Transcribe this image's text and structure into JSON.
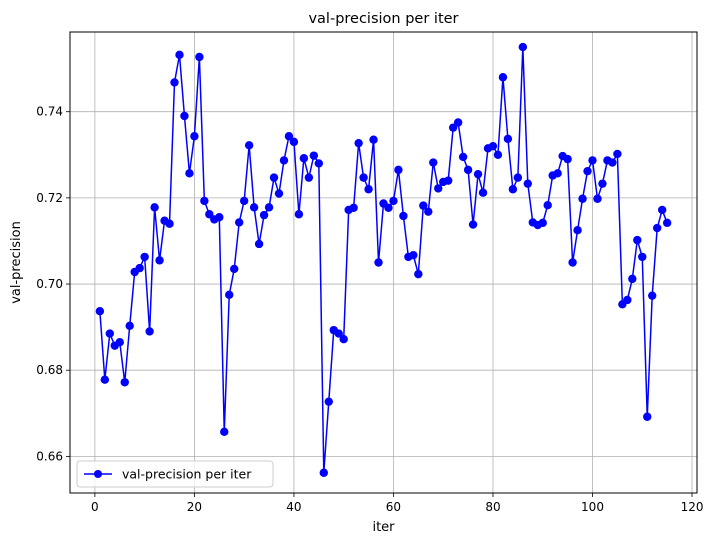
{
  "chart_data": {
    "type": "line",
    "title": "val-precision per iter",
    "xlabel": "iter",
    "ylabel": "val-precision",
    "xlim": [
      -5,
      121
    ],
    "ylim": [
      0.6515,
      0.7585
    ],
    "xticks": [
      0,
      20,
      40,
      60,
      80,
      100,
      120
    ],
    "yticks": [
      0.66,
      0.68,
      0.7,
      0.72,
      0.74
    ],
    "ytick_labels": [
      "0.66",
      "0.68",
      "0.70",
      "0.72",
      "0.74"
    ],
    "grid": true,
    "legend_position": "lower-left",
    "series": [
      {
        "name": "val-precision per iter",
        "color": "#0000ff",
        "marker": "circle",
        "x": [
          1,
          2,
          3,
          4,
          5,
          6,
          7,
          8,
          9,
          10,
          11,
          12,
          13,
          14,
          15,
          16,
          17,
          18,
          19,
          20,
          21,
          22,
          23,
          24,
          25,
          26,
          27,
          28,
          29,
          30,
          31,
          32,
          33,
          34,
          35,
          36,
          37,
          38,
          39,
          40,
          41,
          42,
          43,
          44,
          45,
          46,
          47,
          48,
          49,
          50,
          51,
          52,
          53,
          54,
          55,
          56,
          57,
          58,
          59,
          60,
          61,
          62,
          63,
          64,
          65,
          66,
          67,
          68,
          69,
          70,
          71,
          72,
          73,
          74,
          75,
          76,
          77,
          78,
          79,
          80,
          81,
          82,
          83,
          84,
          85,
          86,
          87,
          88,
          89,
          90,
          91,
          92,
          93,
          94,
          95,
          96,
          97,
          98,
          99,
          100,
          101,
          102,
          103,
          104,
          105,
          106,
          107,
          108,
          109,
          110,
          111,
          112,
          113,
          114,
          115
        ],
        "y": [
          0.6937,
          0.6778,
          0.6885,
          0.6857,
          0.6865,
          0.6772,
          0.6903,
          0.7028,
          0.7037,
          0.7063,
          0.689,
          0.7178,
          0.7055,
          0.7147,
          0.714,
          0.7468,
          0.7532,
          0.739,
          0.7257,
          0.7343,
          0.7527,
          0.7193,
          0.7162,
          0.715,
          0.7155,
          0.6657,
          0.6975,
          0.7035,
          0.7143,
          0.7193,
          0.7322,
          0.7178,
          0.7093,
          0.716,
          0.7178,
          0.7247,
          0.721,
          0.7287,
          0.7343,
          0.733,
          0.7162,
          0.7292,
          0.7247,
          0.7298,
          0.728,
          0.6562,
          0.6727,
          0.6893,
          0.6885,
          0.6872,
          0.7172,
          0.7177,
          0.7327,
          0.7247,
          0.722,
          0.7335,
          0.705,
          0.7187,
          0.7177,
          0.7193,
          0.7265,
          0.7158,
          0.7063,
          0.7067,
          0.7023,
          0.7182,
          0.7168,
          0.7282,
          0.7222,
          0.7237,
          0.724,
          0.7363,
          0.7375,
          0.7295,
          0.7265,
          0.7138,
          0.7255,
          0.7212,
          0.7315,
          0.732,
          0.73,
          0.748,
          0.7337,
          0.722,
          0.7247,
          0.755,
          0.7233,
          0.7143,
          0.7137,
          0.7142,
          0.7183,
          0.7252,
          0.7257,
          0.7297,
          0.729,
          0.705,
          0.7125,
          0.7198,
          0.7262,
          0.7287,
          0.7198,
          0.7233,
          0.7287,
          0.7282,
          0.7302,
          0.6953,
          0.6963,
          0.7012,
          0.7102,
          0.7063,
          0.6692,
          0.6973,
          0.713,
          0.7172,
          0.7142
        ]
      }
    ]
  }
}
